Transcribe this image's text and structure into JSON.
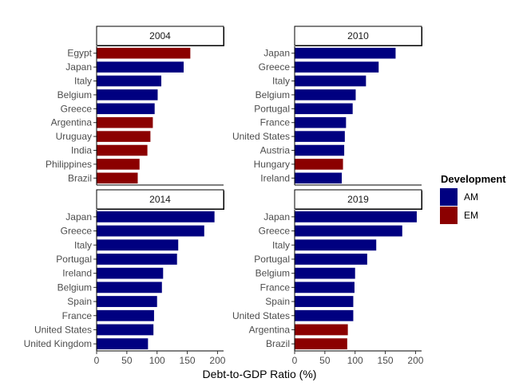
{
  "chart_data": {
    "type": "bar",
    "orientation": "horizontal",
    "xlabel": "Debt-to-GDP Ratio (%)",
    "xlim": [
      0,
      210
    ],
    "xticks": [
      0,
      50,
      100,
      150,
      200
    ],
    "legend": {
      "title": "Development",
      "placement": "right",
      "entries": [
        {
          "key": "AM",
          "label": "AM",
          "color": "#000080"
        },
        {
          "key": "EM",
          "label": "EM",
          "color": "#8B0000"
        }
      ]
    },
    "panels": [
      {
        "title": "2004",
        "categories": [
          "Egypt",
          "Japan",
          "Italy",
          "Belgium",
          "Greece",
          "Argentina",
          "Uruguay",
          "India",
          "Philippines",
          "Brazil"
        ],
        "values": [
          155,
          144,
          107,
          101,
          96,
          93,
          89,
          84,
          71,
          68
        ],
        "groups": [
          "EM",
          "AM",
          "AM",
          "AM",
          "AM",
          "EM",
          "EM",
          "EM",
          "EM",
          "EM"
        ]
      },
      {
        "title": "2010",
        "categories": [
          "Japan",
          "Greece",
          "Italy",
          "Belgium",
          "Portugal",
          "France",
          "United States",
          "Austria",
          "Hungary",
          "Ireland"
        ],
        "values": [
          167,
          139,
          118,
          101,
          96,
          85,
          83,
          82,
          80,
          78
        ],
        "groups": [
          "AM",
          "AM",
          "AM",
          "AM",
          "AM",
          "AM",
          "AM",
          "AM",
          "EM",
          "AM"
        ]
      },
      {
        "title": "2014",
        "categories": [
          "Japan",
          "Greece",
          "Italy",
          "Portugal",
          "Ireland",
          "Belgium",
          "Spain",
          "France",
          "United States",
          "United Kingdom"
        ],
        "values": [
          195,
          178,
          135,
          133,
          110,
          108,
          100,
          95,
          94,
          85
        ],
        "groups": [
          "AM",
          "AM",
          "AM",
          "AM",
          "AM",
          "AM",
          "AM",
          "AM",
          "AM",
          "AM"
        ]
      },
      {
        "title": "2019",
        "categories": [
          "Japan",
          "Greece",
          "Italy",
          "Portugal",
          "Belgium",
          "France",
          "Spain",
          "United States",
          "Argentina",
          "Brazil"
        ],
        "values": [
          202,
          178,
          135,
          120,
          100,
          99,
          97,
          97,
          88,
          87
        ],
        "groups": [
          "AM",
          "AM",
          "AM",
          "AM",
          "AM",
          "AM",
          "AM",
          "AM",
          "EM",
          "EM"
        ]
      }
    ]
  }
}
